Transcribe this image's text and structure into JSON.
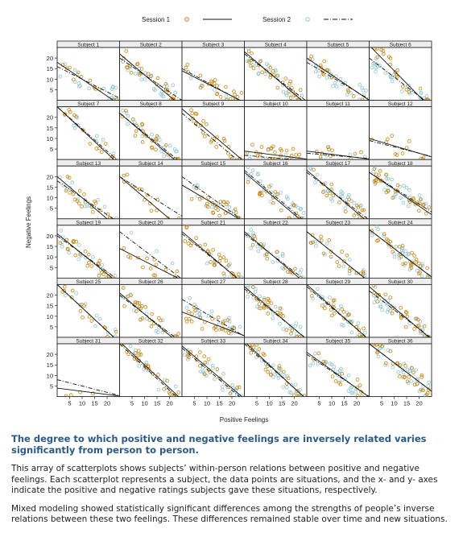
{
  "legend": {
    "session1": "Session 1",
    "session2": "Session 2"
  },
  "colors": {
    "session1_marker": "#c8860d",
    "session2_marker": "#8ec5d0",
    "panel_border": "#222222",
    "strip": "#eeeeee",
    "heading": "#2b5a8a"
  },
  "chart_data": {
    "type": "scatter",
    "layout_note": "lattice 6x6",
    "xlabel": "Positive Feelings",
    "ylabel": "Negative Feelings",
    "xlim": [
      0,
      25
    ],
    "ylim": [
      0,
      25
    ],
    "x_ticks": [
      5,
      10,
      15,
      20
    ],
    "y_ticks": [
      5,
      10,
      15,
      20
    ],
    "series": [
      {
        "name": "Session 1",
        "marker": "open-circle",
        "line": "solid"
      },
      {
        "name": "Session 2",
        "marker": "open-circle",
        "line": "dash-dot"
      }
    ],
    "panels": [
      {
        "label": "Subject 1",
        "fit1": [
          18,
          -0.8
        ],
        "fit2": [
          16,
          -0.6
        ],
        "n1": 12,
        "n2": 20
      },
      {
        "label": "Subject 2",
        "fit1": [
          22,
          -1.0
        ],
        "fit2": [
          20,
          -0.8
        ],
        "n1": 25,
        "n2": 25
      },
      {
        "label": "Subject 3",
        "fit1": [
          14,
          -0.6
        ],
        "fit2": [
          15,
          -0.65
        ],
        "n1": 25,
        "n2": 5
      },
      {
        "label": "Subject 4",
        "fit1": [
          23,
          -1.0
        ],
        "fit2": [
          22,
          -0.9
        ],
        "n1": 30,
        "n2": 25
      },
      {
        "label": "Subject 5",
        "fit1": [
          20,
          -0.8
        ],
        "fit2": [
          18,
          -0.7
        ],
        "n1": 15,
        "n2": 25
      },
      {
        "label": "Subject 6",
        "fit1": [
          26,
          -1.2
        ],
        "fit2": [
          20,
          -0.9
        ],
        "n1": 20,
        "n2": 30
      },
      {
        "label": "Subject 7",
        "fit1": [
          25,
          -1.1
        ],
        "fit2": [
          25,
          -1.05
        ],
        "n1": 15,
        "n2": 10
      },
      {
        "label": "Subject 8",
        "fit1": [
          22,
          -1.0
        ],
        "fit2": [
          22,
          -0.95
        ],
        "n1": 25,
        "n2": 25
      },
      {
        "label": "Subject 9",
        "fit1": [
          24,
          -1.0
        ],
        "fit2": [
          22,
          -1.0
        ],
        "n1": 25,
        "n2": 0
      },
      {
        "label": "Subject 10",
        "fit1": [
          4,
          -0.15
        ],
        "fit2": [
          2,
          -0.1
        ],
        "n1": 25,
        "n2": 10
      },
      {
        "label": "Subject 11",
        "fit1": [
          4,
          -0.15
        ],
        "fit2": [
          3,
          -0.1
        ],
        "n1": 10,
        "n2": 5
      },
      {
        "label": "Subject 12",
        "fit1": [
          10,
          -0.35
        ],
        "fit2": [
          9,
          -0.3
        ],
        "n1": 12,
        "n2": 0
      },
      {
        "label": "Subject 13",
        "fit1": [
          20,
          -1.0
        ],
        "fit2": [
          18,
          -0.8
        ],
        "n1": 20,
        "n2": 15
      },
      {
        "label": "Subject 14",
        "fit1": [
          20,
          -1.0
        ],
        "fit2": [
          20,
          -0.75
        ],
        "n1": 15,
        "n2": 0
      },
      {
        "label": "Subject 15",
        "fit1": [
          16,
          -0.7
        ],
        "fit2": [
          20,
          -0.85
        ],
        "n1": 25,
        "n2": 15
      },
      {
        "label": "Subject 16",
        "fit1": [
          22,
          -1.0
        ],
        "fit2": [
          23,
          -1.0
        ],
        "n1": 20,
        "n2": 30
      },
      {
        "label": "Subject 17",
        "fit1": [
          23,
          -1.0
        ],
        "fit2": [
          22,
          -0.9
        ],
        "n1": 20,
        "n2": 25
      },
      {
        "label": "Subject 18",
        "fit1": [
          22,
          -0.8
        ],
        "fit2": [
          22,
          -0.75
        ],
        "n1": 30,
        "n2": 30
      },
      {
        "label": "Subject 19",
        "fit1": [
          21,
          -0.95
        ],
        "fit2": [
          20,
          -0.85
        ],
        "n1": 25,
        "n2": 15
      },
      {
        "label": "Subject 20",
        "fit1": [
          14,
          -0.6
        ],
        "fit2": [
          22,
          -0.9
        ],
        "n1": 15,
        "n2": 5
      },
      {
        "label": "Subject 21",
        "fit1": [
          22,
          -1.0
        ],
        "fit2": [
          21,
          -0.95
        ],
        "n1": 30,
        "n2": 10
      },
      {
        "label": "Subject 22",
        "fit1": [
          22,
          -1.0
        ],
        "fit2": [
          21,
          -0.9
        ],
        "n1": 15,
        "n2": 25
      },
      {
        "label": "Subject 23",
        "fit1": [
          22,
          -0.95
        ],
        "fit2": [
          22,
          -0.95
        ],
        "n1": 20,
        "n2": 15
      },
      {
        "label": "Subject 24",
        "fit1": [
          23,
          -0.9
        ],
        "fit2": [
          23,
          -0.9
        ],
        "n1": 30,
        "n2": 30
      },
      {
        "label": "Subject 25",
        "fit1": [
          25,
          -1.1
        ],
        "fit2": [
          25,
          -1.1
        ],
        "n1": 15,
        "n2": 10
      },
      {
        "label": "Subject 26",
        "fit1": [
          21,
          -1.0
        ],
        "fit2": [
          20,
          -0.9
        ],
        "n1": 25,
        "n2": 15
      },
      {
        "label": "Subject 27",
        "fit1": [
          12,
          -0.45
        ],
        "fit2": [
          18,
          -0.7
        ],
        "n1": 25,
        "n2": 25
      },
      {
        "label": "Subject 28",
        "fit1": [
          24,
          -1.0
        ],
        "fit2": [
          23,
          -0.95
        ],
        "n1": 25,
        "n2": 25
      },
      {
        "label": "Subject 29",
        "fit1": [
          25,
          -1.05
        ],
        "fit2": [
          24,
          -1.0
        ],
        "n1": 25,
        "n2": 25
      },
      {
        "label": "Subject 30",
        "fit1": [
          24,
          -1.0
        ],
        "fit2": [
          22,
          -0.9
        ],
        "n1": 25,
        "n2": 30
      },
      {
        "label": "Subject 31",
        "fit1": [
          4,
          -0.15
        ],
        "fit2": [
          8,
          -0.3
        ],
        "n1": 5,
        "n2": 0
      },
      {
        "label": "Subject 32",
        "fit1": [
          26,
          -1.1
        ],
        "fit2": [
          25,
          -1.1
        ],
        "n1": 25,
        "n2": 15
      },
      {
        "label": "Subject 33",
        "fit1": [
          24,
          -1.0
        ],
        "fit2": [
          23,
          -1.0
        ],
        "n1": 20,
        "n2": 25
      },
      {
        "label": "Subject 34",
        "fit1": [
          26,
          -1.1
        ],
        "fit2": [
          25,
          -1.05
        ],
        "n1": 25,
        "n2": 30
      },
      {
        "label": "Subject 35",
        "fit1": [
          21,
          -0.85
        ],
        "fit2": [
          20,
          -0.8
        ],
        "n1": 15,
        "n2": 25
      },
      {
        "label": "Subject 36",
        "fit1": [
          25,
          -0.9
        ],
        "fit2": [
          25,
          -0.9
        ],
        "n1": 30,
        "n2": 30
      }
    ]
  },
  "caption": {
    "heading": "The degree to which positive and negative feelings are inversely related varies significantly from person to person.",
    "paragraph1": "This array of scatterplots shows subjects’ within-person relations between positive and negative feelings. Each scatterplot represents a subject, the data points are situations, and the x- and y- axes indicate the positive and negative ratings subjects gave these situations, respectively.",
    "paragraph2": "Mixed modeling showed statistically significant differences among the strengths of people’s inverse relations between these two feelings.  These differences remained stable over time and new situations."
  }
}
